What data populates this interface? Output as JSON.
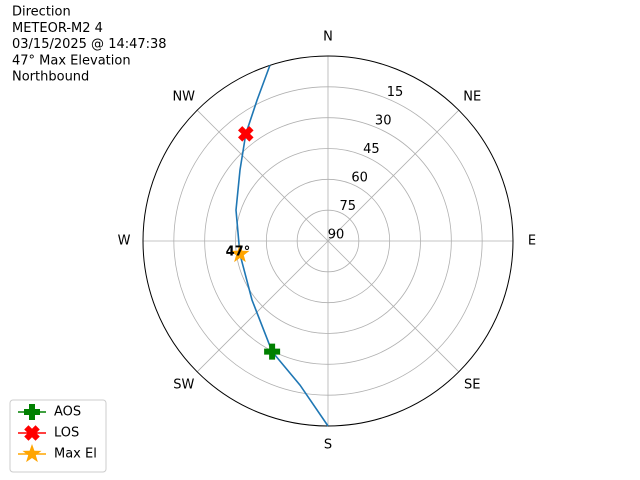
{
  "chart_data": {
    "type": "polar",
    "title_lines": [
      "Direction",
      "METEOR-M2 4",
      "03/15/2025 @ 14:47:38",
      "47° Max Elevation",
      "Northbound"
    ],
    "xlim": [
      0,
      360
    ],
    "xticks": [
      {
        "value": 0,
        "label": "N"
      },
      {
        "value": 45,
        "label": "NE"
      },
      {
        "value": 90,
        "label": "E"
      },
      {
        "value": 135,
        "label": "SE"
      },
      {
        "value": 180,
        "label": "S"
      },
      {
        "value": 225,
        "label": "SW"
      },
      {
        "value": 270,
        "label": "W"
      },
      {
        "value": 315,
        "label": "NW"
      }
    ],
    "ylim": [
      90,
      0
    ],
    "yticks": [
      15,
      30,
      45,
      60,
      75,
      90
    ],
    "grid": true,
    "legend": "lower left",
    "series": [
      {
        "color": "#1f77b4",
        "marker": "none",
        "x": [
          180,
          191,
          206.8,
          232.2,
          261.6,
          288.6,
          308.9,
          322.5,
          333.3,
          341.7
        ],
        "values": [
          0,
          18.6,
          29.7,
          43.2,
          46.7,
          42.8,
          35,
          24.3,
          13.2,
          0
        ]
      },
      {
        "name": "AOS",
        "color": "green",
        "marker": "plus",
        "x": [
          206.8
        ],
        "values": [
          29.7
        ]
      },
      {
        "name": "LOS",
        "color": "red",
        "marker": "x",
        "x": [
          322.5
        ],
        "values": [
          24.3
        ]
      },
      {
        "name": "Max El",
        "color": "orange",
        "marker": "star",
        "x": [
          261.6
        ],
        "values": [
          46.7
        ]
      }
    ],
    "annotations": [
      {
        "text": "47°",
        "x": 261.6,
        "y": 46.7
      }
    ]
  }
}
